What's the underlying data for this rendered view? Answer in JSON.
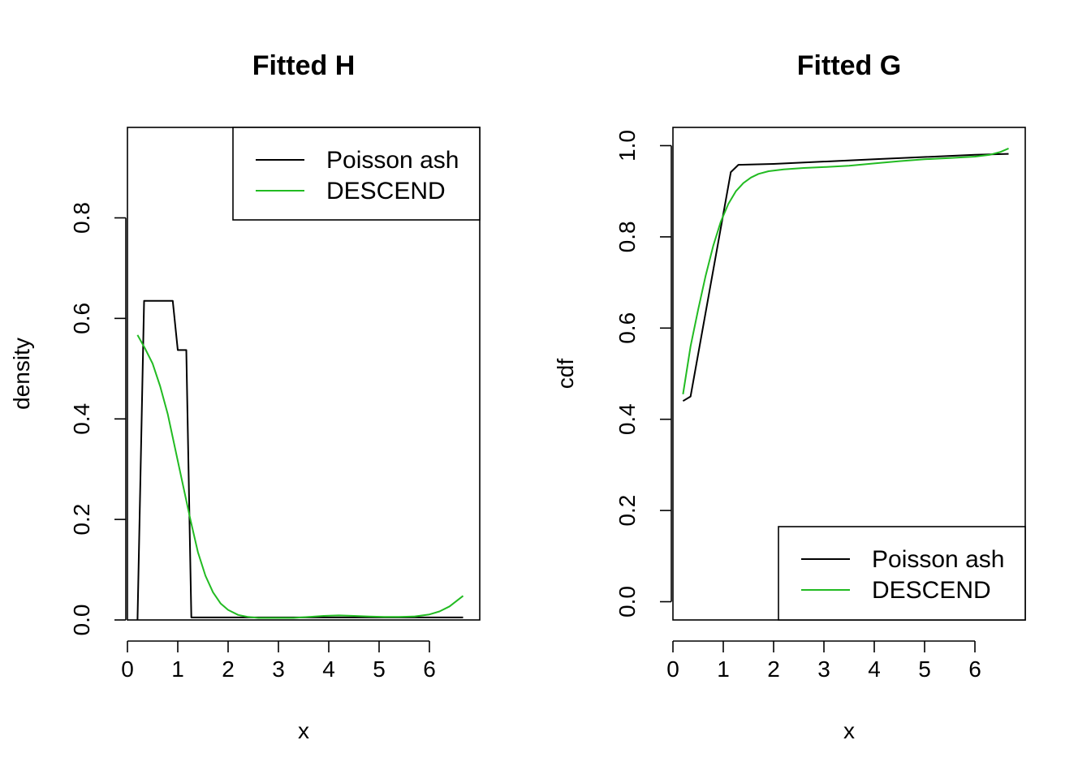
{
  "chart_data": [
    {
      "type": "line",
      "title": "Fitted H",
      "xlabel": "x",
      "ylabel": "density",
      "xlim": [
        0,
        7
      ],
      "ylim": [
        0,
        0.98
      ],
      "xticks": [
        0,
        1,
        2,
        3,
        4,
        5,
        6
      ],
      "yticks": [
        0.0,
        0.2,
        0.4,
        0.6,
        0.8
      ],
      "ytick_labels": [
        "0.0",
        "0.2",
        "0.4",
        "0.6",
        "0.8"
      ],
      "legend": "top-right",
      "series": [
        {
          "name": "Poisson ash",
          "color": "#000000",
          "x": [
            0.2,
            0.33,
            0.5,
            0.7,
            0.9,
            1.0,
            1.1,
            1.17,
            1.27,
            3.0,
            5.0,
            6.67
          ],
          "y": [
            0.0,
            0.635,
            0.635,
            0.635,
            0.635,
            0.537,
            0.537,
            0.537,
            0.005,
            0.005,
            0.005,
            0.005
          ]
        },
        {
          "name": "DESCEND",
          "color": "#22bb22",
          "x": [
            0.2,
            0.35,
            0.5,
            0.65,
            0.8,
            0.95,
            1.1,
            1.25,
            1.4,
            1.55,
            1.7,
            1.85,
            2.0,
            2.2,
            2.4,
            2.6,
            2.8,
            3.0,
            3.3,
            3.6,
            3.9,
            4.2,
            4.5,
            4.8,
            5.1,
            5.4,
            5.7,
            6.0,
            6.2,
            6.4,
            6.67
          ],
          "y": [
            0.567,
            0.54,
            0.51,
            0.465,
            0.41,
            0.34,
            0.27,
            0.2,
            0.135,
            0.088,
            0.055,
            0.033,
            0.02,
            0.01,
            0.006,
            0.004,
            0.004,
            0.004,
            0.004,
            0.006,
            0.008,
            0.009,
            0.008,
            0.007,
            0.006,
            0.006,
            0.007,
            0.011,
            0.017,
            0.027,
            0.048
          ]
        }
      ]
    },
    {
      "type": "line",
      "title": "Fitted G",
      "xlabel": "x",
      "ylabel": "cdf",
      "xlim": [
        0,
        7
      ],
      "ylim": [
        -0.04,
        1.04
      ],
      "xticks": [
        0,
        1,
        2,
        3,
        4,
        5,
        6
      ],
      "yticks": [
        0.0,
        0.2,
        0.4,
        0.6,
        0.8,
        1.0
      ],
      "ytick_labels": [
        "0.0",
        "0.2",
        "0.4",
        "0.6",
        "0.8",
        "1.0"
      ],
      "legend": "bottom-right",
      "series": [
        {
          "name": "Poisson ash",
          "color": "#000000",
          "x": [
            0.2,
            0.35,
            1.15,
            1.3,
            2.0,
            4.0,
            6.0,
            6.67
          ],
          "y": [
            0.44,
            0.45,
            0.942,
            0.958,
            0.96,
            0.97,
            0.98,
            0.982
          ]
        },
        {
          "name": "DESCEND",
          "color": "#22bb22",
          "x": [
            0.2,
            0.35,
            0.5,
            0.65,
            0.8,
            0.95,
            1.1,
            1.25,
            1.4,
            1.55,
            1.7,
            1.9,
            2.2,
            2.6,
            3.0,
            3.5,
            4.0,
            4.5,
            5.0,
            5.5,
            6.0,
            6.3,
            6.5,
            6.67
          ],
          "y": [
            0.455,
            0.56,
            0.64,
            0.715,
            0.78,
            0.833,
            0.872,
            0.9,
            0.918,
            0.93,
            0.938,
            0.944,
            0.948,
            0.951,
            0.953,
            0.956,
            0.961,
            0.966,
            0.97,
            0.973,
            0.976,
            0.98,
            0.986,
            0.994
          ]
        }
      ]
    }
  ]
}
